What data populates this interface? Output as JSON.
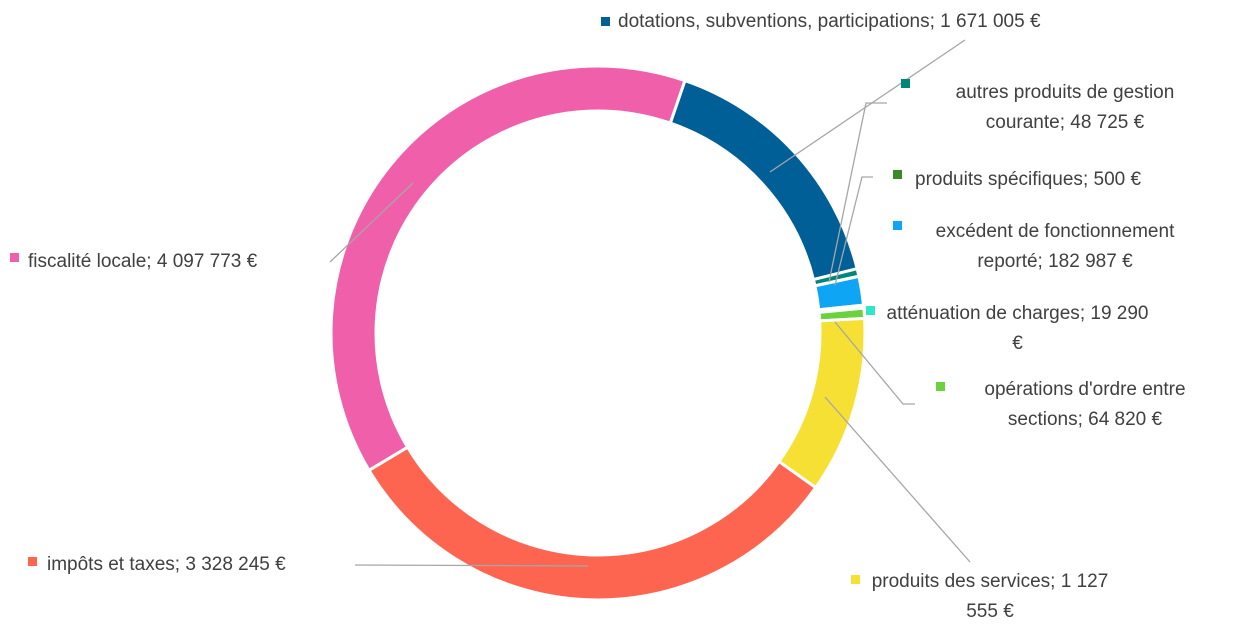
{
  "chart_data": {
    "type": "donut",
    "categories": [
      "dotations, subventions, participations",
      "autres produits de gestion courante",
      "produits spécifiques",
      "excédent de fonctionnement reporté",
      "atténuation de charges",
      "opérations d'ordre entre sections",
      "produits des services",
      "impôts et taxes",
      "fiscalité locale"
    ],
    "values": [
      1671005,
      48725,
      500,
      182987,
      19290,
      64820,
      1127555,
      3328245,
      4097773
    ],
    "value_labels": [
      "1 671 005 €",
      "48 725 €",
      "500 €",
      "182 987 €",
      "19 290 €",
      "64 820 €",
      "1 127 555 €",
      "3 328 245 €",
      "4 097 773 €"
    ],
    "label_separator": "; ",
    "colors": [
      "#005f96",
      "#00877a",
      "#3b8a28",
      "#0ea5f5",
      "#2ee6c8",
      "#6ad23c",
      "#f7e034",
      "#fe6550",
      "#ef5faa"
    ]
  }
}
